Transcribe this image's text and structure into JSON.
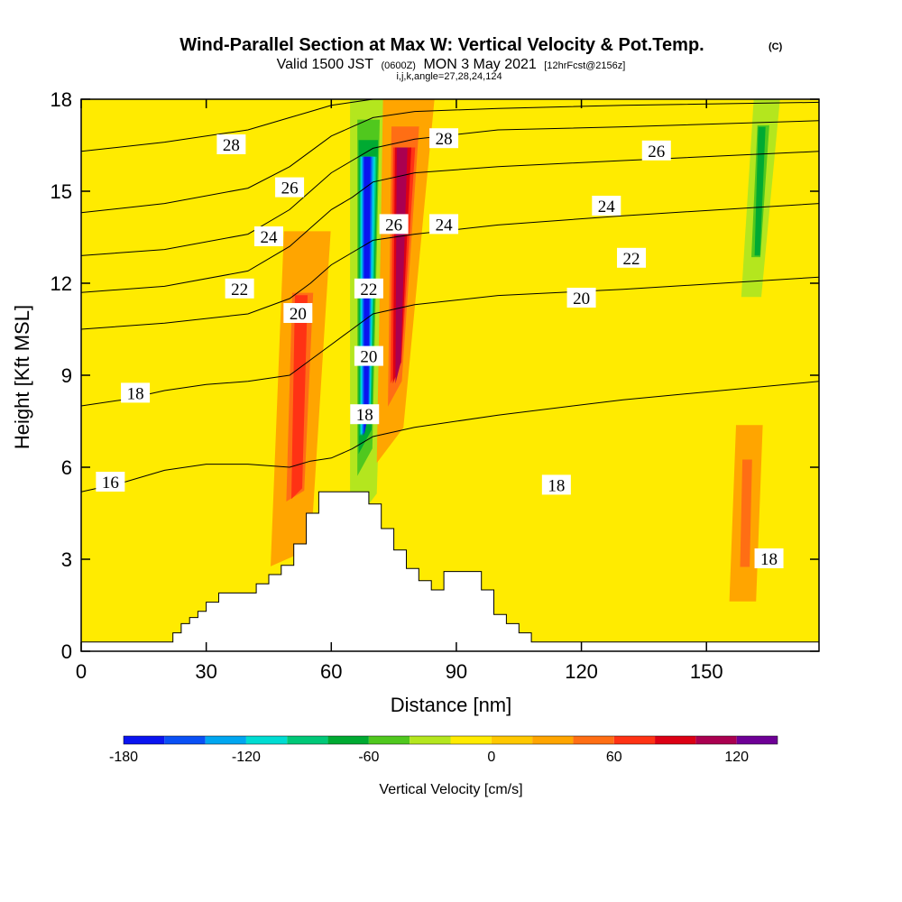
{
  "title": {
    "main": "Wind-Parallel Section at Max W: Vertical Velocity & Pot.Temp.",
    "main_mark": "(C)",
    "valid_a": "Valid 1500 JST",
    "valid_b": "(0600Z)",
    "valid_c": "MON 3 May 2021",
    "valid_d": "[12hrFcst@2156z]",
    "indices": "i,j,k,angle=27,28,24,124"
  },
  "chart_data": {
    "type": "heatmap",
    "xlabel": "Distance [nm]",
    "ylabel": "Height [Kft MSL]",
    "xlim": [
      0,
      177
    ],
    "ylim": [
      0,
      18
    ],
    "x_ticks": [
      "0",
      "30",
      "60",
      "90",
      "120",
      "150"
    ],
    "y_ticks": [
      "0",
      "3",
      "6",
      "9",
      "12",
      "15",
      "18"
    ],
    "fill_variable": "Vertical Velocity [cm/s]",
    "colorbar": {
      "label": "Vertical Velocity [cm/s]",
      "levels": [
        -180,
        -160,
        -140,
        -120,
        -100,
        -80,
        -60,
        -40,
        -20,
        0,
        20,
        40,
        60,
        80,
        100,
        120,
        140
      ],
      "tick_labels": [
        "-180",
        "-120",
        "-60",
        "0",
        "60",
        "120"
      ],
      "colors": [
        "#0a14f0",
        "#0a50f5",
        "#00a6f0",
        "#00dcd2",
        "#00c878",
        "#00aa32",
        "#50c81e",
        "#b4e61e",
        "#ffeb00",
        "#ffc800",
        "#ffa500",
        "#ff6e14",
        "#ff3214",
        "#dc0014",
        "#aa0050",
        "#6e0096"
      ]
    },
    "background_color": "#ffeb00",
    "terrain_color": "#ffffff",
    "velocity_features": [
      {
        "kind": "downdraft core",
        "x": [
          66,
          70,
          72,
          66
        ],
        "y": [
          5,
          6,
          18,
          18
        ],
        "min_value": -170
      },
      {
        "kind": "updraft core",
        "x": [
          73,
          77,
          82,
          74
        ],
        "y": [
          7,
          8,
          18,
          18
        ],
        "max_value": 110
      },
      {
        "kind": "updraft",
        "x": [
          48,
          54,
          57,
          50
        ],
        "y": [
          3.5,
          4,
          13,
          13
        ],
        "max_value": 60
      },
      {
        "kind": "updraft",
        "x": [
          157,
          161,
          162,
          158
        ],
        "y": [
          2,
          2,
          7,
          7
        ],
        "max_value": 50
      },
      {
        "kind": "downdraft",
        "x": [
          160,
          163,
          166,
          162
        ],
        "y": [
          12,
          12,
          18,
          18
        ],
        "min_value": -60
      }
    ],
    "terrain_profile": {
      "x": [
        0,
        22,
        22,
        24,
        24,
        26,
        26,
        28,
        28,
        30,
        30,
        33,
        33,
        42,
        42,
        45,
        45,
        48,
        48,
        51,
        51,
        54,
        54,
        57,
        57,
        60,
        60,
        69,
        69,
        72,
        72,
        75,
        75,
        78,
        78,
        81,
        81,
        84,
        84,
        87,
        87,
        90,
        90,
        96,
        96,
        99,
        99,
        102,
        102,
        105,
        105,
        108,
        108,
        114,
        114,
        177
      ],
      "y": [
        0.3,
        0.3,
        0.6,
        0.6,
        0.9,
        0.9,
        1.1,
        1.1,
        1.3,
        1.3,
        1.6,
        1.6,
        1.9,
        1.9,
        2.2,
        2.2,
        2.5,
        2.5,
        2.8,
        2.8,
        3.5,
        3.5,
        4.5,
        4.5,
        5.2,
        5.2,
        5.2,
        5.2,
        4.8,
        4.8,
        4.0,
        4.0,
        3.3,
        3.3,
        2.7,
        2.7,
        2.3,
        2.3,
        2.0,
        2.0,
        2.6,
        2.6,
        2.6,
        2.6,
        2.0,
        2.0,
        1.2,
        1.2,
        0.9,
        0.9,
        0.6,
        0.6,
        0.3,
        0.3,
        0.3,
        0.3
      ]
    },
    "theta_contours": [
      {
        "label": "16",
        "x": [
          0,
          10,
          20,
          30,
          40,
          50,
          55,
          60,
          65,
          70,
          80,
          100,
          130,
          177
        ],
        "y": [
          5.2,
          5.5,
          5.9,
          6.1,
          6.1,
          6.0,
          6.2,
          6.3,
          6.6,
          7.0,
          7.3,
          7.7,
          8.2,
          8.8
        ]
      },
      {
        "label": "18",
        "x": [
          0,
          10,
          20,
          30,
          40,
          50,
          55,
          60,
          65,
          70,
          80,
          100,
          130,
          177
        ],
        "y": [
          8.0,
          8.2,
          8.5,
          8.7,
          8.8,
          9.0,
          9.5,
          10.0,
          10.5,
          11.0,
          11.3,
          11.6,
          11.8,
          12.2
        ]
      },
      {
        "label": "20",
        "x": [
          0,
          20,
          40,
          50,
          55,
          60,
          65,
          70,
          80,
          100,
          130,
          177
        ],
        "y": [
          10.5,
          10.7,
          11.0,
          11.5,
          12.0,
          12.6,
          13.0,
          13.4,
          13.6,
          13.9,
          14.2,
          14.6
        ]
      },
      {
        "label": "22",
        "x": [
          0,
          20,
          40,
          50,
          55,
          60,
          65,
          70,
          80,
          100,
          130,
          177
        ],
        "y": [
          11.7,
          11.9,
          12.4,
          13.2,
          13.8,
          14.4,
          14.8,
          15.3,
          15.6,
          15.8,
          16.0,
          16.3
        ]
      },
      {
        "label": "24",
        "x": [
          0,
          20,
          40,
          50,
          55,
          60,
          65,
          70,
          80,
          100,
          130,
          177
        ],
        "y": [
          12.9,
          13.1,
          13.6,
          14.4,
          15.0,
          15.6,
          16.0,
          16.4,
          16.7,
          17.0,
          17.1,
          17.3
        ]
      },
      {
        "label": "26",
        "x": [
          0,
          20,
          40,
          50,
          55,
          60,
          65,
          70,
          80,
          100,
          130,
          177
        ],
        "y": [
          14.3,
          14.6,
          15.1,
          15.8,
          16.3,
          16.8,
          17.1,
          17.4,
          17.6,
          17.7,
          17.8,
          17.9
        ]
      },
      {
        "label": "28",
        "x": [
          0,
          20,
          40,
          50,
          55,
          60,
          65,
          70,
          80,
          100,
          130,
          177
        ],
        "y": [
          16.3,
          16.6,
          17.0,
          17.4,
          17.6,
          17.8,
          17.9,
          18.0,
          18.0,
          18.0,
          18.0,
          18.0
        ]
      }
    ],
    "contour_labels": [
      {
        "text": "16",
        "x": 7,
        "y": 5.5
      },
      {
        "text": "18",
        "x": 13,
        "y": 8.4
      },
      {
        "text": "20",
        "x": 52,
        "y": 11.0
      },
      {
        "text": "22",
        "x": 38,
        "y": 11.8
      },
      {
        "text": "24",
        "x": 45,
        "y": 13.5
      },
      {
        "text": "26",
        "x": 50,
        "y": 15.1
      },
      {
        "text": "28",
        "x": 36,
        "y": 16.5
      },
      {
        "text": "18",
        "x": 68,
        "y": 7.7
      },
      {
        "text": "20",
        "x": 69,
        "y": 9.6
      },
      {
        "text": "22",
        "x": 69,
        "y": 11.8
      },
      {
        "text": "26",
        "x": 75,
        "y": 13.9
      },
      {
        "text": "24",
        "x": 87,
        "y": 13.9
      },
      {
        "text": "28",
        "x": 87,
        "y": 16.7
      },
      {
        "text": "18",
        "x": 114,
        "y": 5.4
      },
      {
        "text": "20",
        "x": 120,
        "y": 11.5
      },
      {
        "text": "22",
        "x": 132,
        "y": 12.8
      },
      {
        "text": "24",
        "x": 126,
        "y": 14.5
      },
      {
        "text": "26",
        "x": 138,
        "y": 16.3
      },
      {
        "text": "18",
        "x": 165,
        "y": 3.0
      }
    ]
  }
}
